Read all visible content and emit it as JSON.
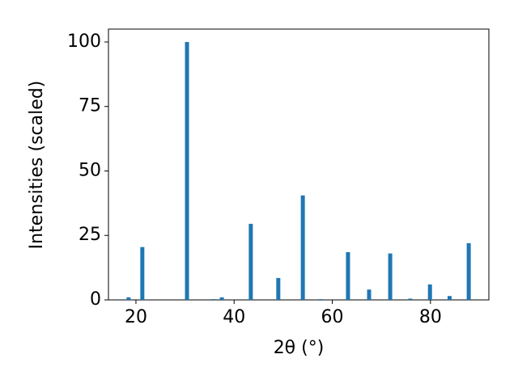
{
  "chart_data": {
    "type": "bar",
    "xlabel": "2θ (°)",
    "ylabel": "Intensities (scaled)",
    "x": [
      18.5,
      21.3,
      30.4,
      35.8,
      37.5,
      43.4,
      49.0,
      54.0,
      57.6,
      63.2,
      67.5,
      71.8,
      75.9,
      79.9,
      83.9,
      87.8
    ],
    "values": [
      1,
      20.5,
      100,
      0.3,
      1,
      29.5,
      8.5,
      40.5,
      0.3,
      18.5,
      4,
      18,
      0.5,
      6,
      1.5,
      22
    ],
    "color": "#1f77b4",
    "xlim": [
      14.4,
      91.9
    ],
    "xticks": [
      20,
      40,
      60,
      80
    ],
    "ylim": [
      0,
      105
    ],
    "yticks": [
      0,
      25,
      50,
      75,
      100
    ],
    "grid": false
  }
}
